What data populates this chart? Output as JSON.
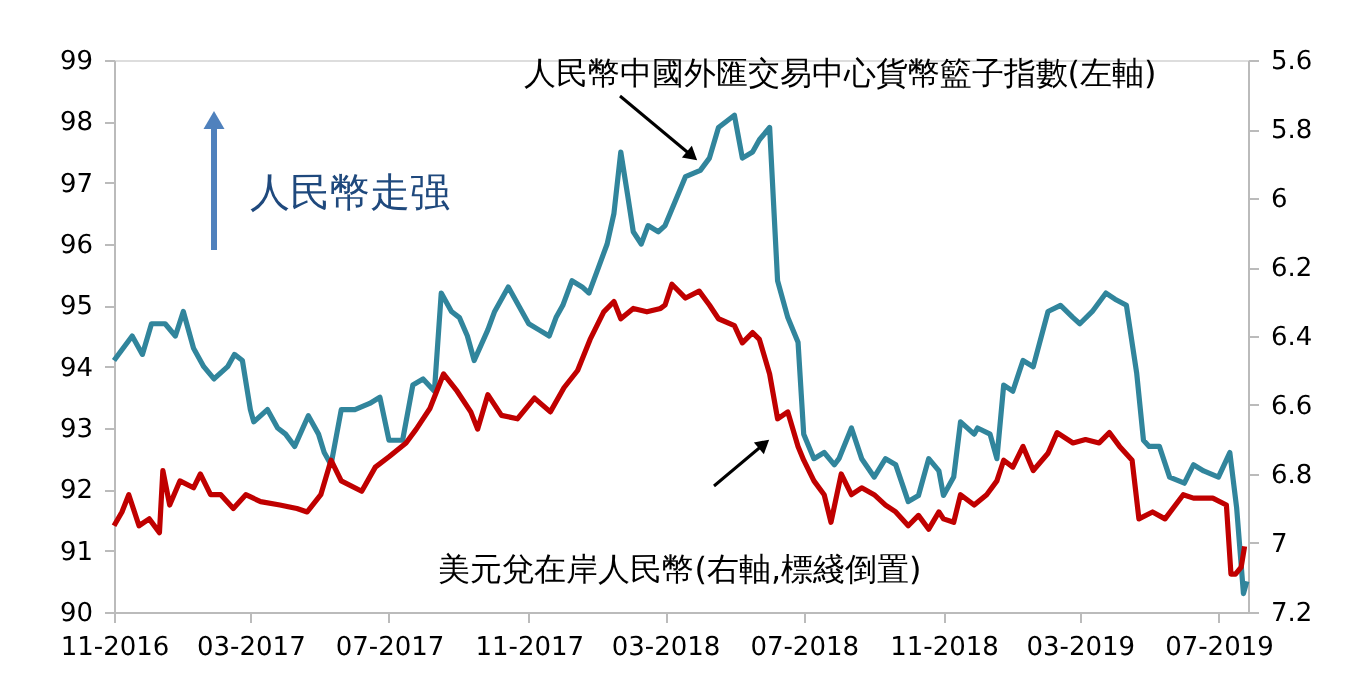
{
  "chart_data": {
    "type": "line",
    "annotations": [
      "人民幣走强"
    ],
    "xlim": [
      "2016-11-01",
      "2019-07-27"
    ],
    "xticks": [
      {
        "value": "2016-11-01",
        "label": "11-2016"
      },
      {
        "value": "2017-03-01",
        "label": "03-2017"
      },
      {
        "value": "2017-07-01",
        "label": "07-2017"
      },
      {
        "value": "2017-11-01",
        "label": "11-2017"
      },
      {
        "value": "2018-03-01",
        "label": "03-2018"
      },
      {
        "value": "2018-07-01",
        "label": "07-2018"
      },
      {
        "value": "2018-11-01",
        "label": "11-2018"
      },
      {
        "value": "2019-03-01",
        "label": "03-2019"
      },
      {
        "value": "2019-07-01",
        "label": "07-2019"
      }
    ],
    "ylim": [
      90,
      99
    ],
    "yticks": [
      90,
      91,
      92,
      93,
      94,
      95,
      96,
      97,
      98,
      99
    ],
    "y2lim": [
      7.2,
      5.6
    ],
    "y2ticks": [
      5.6,
      5.8,
      6,
      6.2,
      6.4,
      6.6,
      6.8,
      7,
      7.2
    ],
    "grid": false,
    "marker": "none",
    "line_style": "solid",
    "series": [
      {
        "name": "人民幣中國外匯交易中心貨幣籃子指數(左軸)",
        "color": "#31859c",
        "x": [
          "2016-11-01",
          "2016-11-17",
          "2016-11-26",
          "2016-12-04",
          "2016-12-16",
          "2016-12-25",
          "2017-01-01",
          "2017-01-10",
          "2017-01-19",
          "2017-01-28",
          "2017-02-09",
          "2017-02-15",
          "2017-02-22",
          "2017-03-01",
          "2017-03-04",
          "2017-03-16",
          "2017-03-25",
          "2017-04-01",
          "2017-04-09",
          "2017-04-21",
          "2017-04-30",
          "2017-05-05",
          "2017-05-11",
          "2017-05-20",
          "2017-06-01",
          "2017-06-14",
          "2017-06-23",
          "2017-07-01",
          "2017-07-13",
          "2017-07-22",
          "2017-07-31",
          "2017-08-10",
          "2017-08-16",
          "2017-08-25",
          "2017-09-01",
          "2017-09-08",
          "2017-09-14",
          "2017-09-26",
          "2017-10-02",
          "2017-10-14",
          "2017-11-01",
          "2017-11-10",
          "2017-11-19",
          "2017-11-25",
          "2017-12-01",
          "2017-12-09",
          "2017-12-18",
          "2017-12-24",
          "2018-01-01",
          "2018-01-09",
          "2018-01-15",
          "2018-01-21",
          "2018-01-27",
          "2018-02-01",
          "2018-02-08",
          "2018-02-14",
          "2018-02-23",
          "2018-03-01",
          "2018-03-10",
          "2018-03-19",
          "2018-04-01",
          "2018-04-09",
          "2018-04-17",
          "2018-05-01",
          "2018-05-08",
          "2018-05-17",
          "2018-05-23",
          "2018-06-01",
          "2018-06-08",
          "2018-06-17",
          "2018-06-26",
          "2018-07-01",
          "2018-07-10",
          "2018-07-19",
          "2018-07-28",
          "2018-08-01",
          "2018-08-12",
          "2018-08-21",
          "2018-09-01",
          "2018-09-11",
          "2018-09-20",
          "2018-10-01",
          "2018-10-10",
          "2018-10-19",
          "2018-10-28",
          "2018-11-01",
          "2018-11-10",
          "2018-11-16",
          "2018-11-28",
          "2018-12-01",
          "2018-12-12",
          "2018-12-18",
          "2018-12-24",
          "2019-01-01",
          "2019-01-10",
          "2019-01-19",
          "2019-02-01",
          "2019-02-12",
          "2019-02-23",
          "2019-03-01",
          "2019-03-12",
          "2019-03-24",
          "2019-04-01",
          "2019-04-11",
          "2019-04-20",
          "2019-04-26",
          "2019-05-01",
          "2019-05-10",
          "2019-05-19",
          "2019-06-01",
          "2019-06-09",
          "2019-06-18",
          "2019-07-01",
          "2019-07-11",
          "2019-07-17",
          "2019-07-23",
          "2019-07-26"
        ],
        "values": [
          94.1,
          94.5,
          94.2,
          94.7,
          94.7,
          94.5,
          94.9,
          94.3,
          94.0,
          93.8,
          94.0,
          94.2,
          94.1,
          93.3,
          93.1,
          93.3,
          93.0,
          92.9,
          92.7,
          93.2,
          92.9,
          92.6,
          92.4,
          93.3,
          93.3,
          93.4,
          93.5,
          92.8,
          92.8,
          93.7,
          93.8,
          93.6,
          95.2,
          94.9,
          94.8,
          94.5,
          94.1,
          94.6,
          94.9,
          95.3,
          94.7,
          94.6,
          94.5,
          94.8,
          95.0,
          95.4,
          95.3,
          95.2,
          95.6,
          96.0,
          96.5,
          97.5,
          96.8,
          96.2,
          96.0,
          96.3,
          96.2,
          96.3,
          96.7,
          97.1,
          97.2,
          97.4,
          97.9,
          98.1,
          97.4,
          97.5,
          97.7,
          97.9,
          95.4,
          94.8,
          94.4,
          92.9,
          92.5,
          92.6,
          92.4,
          92.5,
          93.0,
          92.5,
          92.2,
          92.5,
          92.4,
          91.8,
          91.9,
          92.5,
          92.3,
          91.9,
          92.2,
          93.1,
          92.9,
          93.0,
          92.9,
          92.5,
          93.7,
          93.6,
          94.1,
          94.0,
          94.9,
          95.0,
          94.8,
          94.7,
          94.9,
          95.2,
          95.1,
          95.0,
          93.9,
          92.8,
          92.7,
          92.7,
          92.2,
          92.1,
          92.4,
          92.3,
          92.2,
          92.6,
          91.7,
          90.3,
          90.5
        ]
      },
      {
        "name": "美元兌在岸人民幣(右軸,標綫倒置)",
        "color": "#c00000",
        "axis": "y2",
        "x": [
          "2016-11-01",
          "2016-11-08",
          "2016-11-14",
          "2016-11-23",
          "2016-12-02",
          "2016-12-11",
          "2016-12-14",
          "2016-12-20",
          "2016-12-29",
          "2017-01-10",
          "2017-01-16",
          "2017-01-25",
          "2017-02-03",
          "2017-02-14",
          "2017-02-25",
          "2017-03-10",
          "2017-03-27",
          "2017-04-11",
          "2017-04-20",
          "2017-05-02",
          "2017-05-11",
          "2017-05-20",
          "2017-06-07",
          "2017-06-19",
          "2017-07-01",
          "2017-07-16",
          "2017-07-25",
          "2017-08-06",
          "2017-08-18",
          "2017-08-30",
          "2017-09-11",
          "2017-09-17",
          "2017-09-26",
          "2017-10-08",
          "2017-10-22",
          "2017-11-06",
          "2017-11-20",
          "2017-12-02",
          "2017-12-14",
          "2017-12-25",
          "2018-01-06",
          "2018-01-15",
          "2018-01-21",
          "2018-02-01",
          "2018-02-13",
          "2018-02-25",
          "2018-03-01",
          "2018-03-07",
          "2018-03-19",
          "2018-03-31",
          "2018-04-09",
          "2018-04-17",
          "2018-05-01",
          "2018-05-08",
          "2018-05-17",
          "2018-05-23",
          "2018-06-01",
          "2018-06-08",
          "2018-06-17",
          "2018-06-26",
          "2018-07-01",
          "2018-07-10",
          "2018-07-19",
          "2018-07-25",
          "2018-08-03",
          "2018-08-12",
          "2018-08-21",
          "2018-09-01",
          "2018-09-11",
          "2018-09-20",
          "2018-10-01",
          "2018-10-10",
          "2018-10-19",
          "2018-10-28",
          "2018-11-01",
          "2018-11-10",
          "2018-11-16",
          "2018-11-28",
          "2018-12-09",
          "2018-12-18",
          "2018-12-24",
          "2019-01-01",
          "2019-01-10",
          "2019-01-19",
          "2019-02-01",
          "2019-02-09",
          "2019-02-23",
          "2019-03-06",
          "2019-03-18",
          "2019-03-27",
          "2019-04-05",
          "2019-04-16",
          "2019-04-22",
          "2019-05-04",
          "2019-05-15",
          "2019-05-31",
          "2019-06-09",
          "2019-06-26",
          "2019-07-08",
          "2019-07-12",
          "2019-07-16",
          "2019-07-21",
          "2019-07-24"
        ],
        "values": [
          6.95,
          6.91,
          6.86,
          6.95,
          6.93,
          6.97,
          6.79,
          6.89,
          6.82,
          6.84,
          6.8,
          6.86,
          6.86,
          6.9,
          6.86,
          6.88,
          6.89,
          6.9,
          6.91,
          6.86,
          6.76,
          6.82,
          6.85,
          6.78,
          6.75,
          6.71,
          6.67,
          6.61,
          6.51,
          6.56,
          6.62,
          6.67,
          6.57,
          6.63,
          6.64,
          6.58,
          6.62,
          6.55,
          6.5,
          6.41,
          6.33,
          6.3,
          6.35,
          6.32,
          6.33,
          6.32,
          6.31,
          6.25,
          6.29,
          6.27,
          6.31,
          6.35,
          6.37,
          6.42,
          6.39,
          6.41,
          6.51,
          6.64,
          6.62,
          6.72,
          6.76,
          6.82,
          6.86,
          6.94,
          6.8,
          6.86,
          6.84,
          6.86,
          6.89,
          6.91,
          6.95,
          6.92,
          6.96,
          6.91,
          6.93,
          6.94,
          6.86,
          6.89,
          6.86,
          6.82,
          6.76,
          6.78,
          6.72,
          6.79,
          6.74,
          6.68,
          6.71,
          6.7,
          6.71,
          6.68,
          6.72,
          6.76,
          6.93,
          6.91,
          6.93,
          6.86,
          6.87,
          6.87,
          6.89,
          7.09,
          7.09,
          7.07,
          7.01
        ]
      }
    ]
  }
}
